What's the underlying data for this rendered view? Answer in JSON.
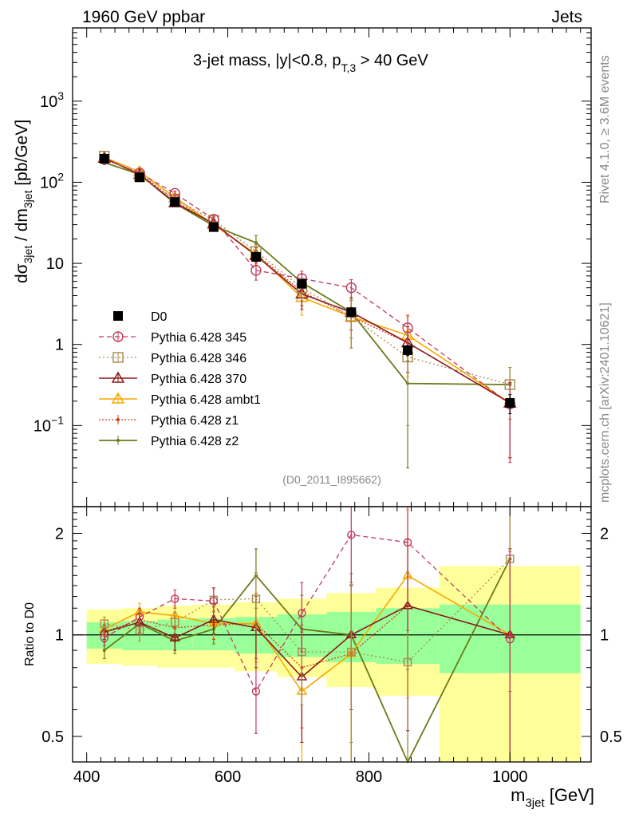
{
  "header": {
    "left": "1960 GeV ppbar",
    "right": "Jets"
  },
  "side": {
    "rivet": "Rivet 4.1.0, ≥ 3.6M events",
    "mcplots": "mcplots.cern.ch [arXiv:2401.10621]"
  },
  "analysis_id": "(D0_2011_I895662)",
  "colors": {
    "data": "#000000",
    "p345": "#c0395a",
    "p346": "#a88a4a",
    "p370": "#8b1a1a",
    "ambt1": "#f5a800",
    "z1": "#d63a1a",
    "z2": "#6b7a1a",
    "band_inner": "#99ff99",
    "band_outer": "#ffff99"
  },
  "chart_data": [
    {
      "type": "line",
      "title": "3-jet mass, |y|<0.8, p_T,3 > 40 GeV",
      "title_parts": {
        "main": "3-jet mass, |y|<0.8, p",
        "sub": "T,3",
        "tail": " > 40 GeV"
      },
      "xlabel": "m_3jet [GeV]",
      "xlabel_parts": {
        "main": "m",
        "sub": "3jet",
        "tail": " [GeV]"
      },
      "ylabel": "dσ_3jet / dm_3jet [pb/GeV]",
      "ylabel_parts": {
        "a": "dσ",
        "a_sub": "3jet",
        "b": " / dm",
        "b_sub": "3jet",
        "c": " [pb/GeV]"
      },
      "xlim": [
        380,
        1115
      ],
      "ylim": [
        0.01,
        8000
      ],
      "yscale": "log",
      "y_ticks": [
        {
          "base": "10",
          "exp": "−1",
          "text": ""
        },
        {
          "base": "",
          "exp": "",
          "text": "1"
        },
        {
          "base": "",
          "exp": "",
          "text": "10"
        },
        {
          "base": "10",
          "exp": "2",
          "text": ""
        },
        {
          "base": "10",
          "exp": "3",
          "text": ""
        }
      ],
      "y_tick_values": [
        0.1,
        1,
        10,
        100,
        1000
      ],
      "x": [
        425,
        475,
        525,
        580,
        640,
        705,
        775,
        855,
        1000
      ],
      "bin_edges": [
        400,
        450,
        500,
        550,
        610,
        670,
        740,
        810,
        900,
        1100
      ],
      "legend_location": "middle-left",
      "series": [
        {
          "name": "D0",
          "label": "D0",
          "key": "data",
          "values": [
            195,
            115,
            57,
            28,
            12,
            5.6,
            2.5,
            0.85,
            0.19
          ],
          "errors": [
            10,
            6,
            3,
            1.5,
            1.0,
            0.5,
            0.3,
            0.12,
            0.05
          ]
        },
        {
          "name": "Pythia 6.428 345",
          "label": "Pythia 6.428 345",
          "key": "p345",
          "values": [
            192,
            130,
            73,
            35,
            8.2,
            6.5,
            5.0,
            1.6,
            0.185
          ],
          "errors": [
            10,
            8,
            5,
            3,
            2,
            1.5,
            1.3,
            0.7,
            0.15
          ]
        },
        {
          "name": "Pythia 6.428 346",
          "label": "Pythia 6.428 346",
          "key": "p346",
          "values": [
            210,
            118,
            62,
            34,
            14,
            5.0,
            2.2,
            0.7,
            0.32
          ],
          "errors": [
            10,
            8,
            5,
            3,
            3,
            1.5,
            1.3,
            0.6,
            0.2
          ]
        },
        {
          "name": "Pythia 6.428 370",
          "label": "Pythia 6.428 370",
          "key": "p370",
          "values": [
            198,
            125,
            56,
            31,
            12.5,
            4.2,
            2.5,
            1.05,
            0.19
          ],
          "errors": [
            10,
            8,
            5,
            3,
            3,
            1.5,
            1.0,
            0.6,
            0.15
          ]
        },
        {
          "name": "Pythia 6.428 ambt1",
          "label": "Pythia 6.428 ambt1",
          "key": "ambt1",
          "values": [
            202,
            135,
            65,
            30,
            13,
            3.8,
            2.2,
            1.3,
            0.19
          ],
          "errors": [
            10,
            8,
            5,
            3,
            3,
            1.5,
            1.3,
            0.9,
            0.15
          ]
        },
        {
          "name": "Pythia 6.428 z1",
          "label": "Pythia 6.428 z1",
          "key": "z1",
          "values": [
            200,
            128,
            60,
            30,
            13,
            4.5,
            2.2,
            1.05,
            0.19
          ],
          "errors": [
            10,
            8,
            5,
            3,
            3,
            1.5,
            1.3,
            0.6,
            0.15
          ]
        },
        {
          "name": "Pythia 6.428 z2",
          "label": "Pythia 6.428 z2",
          "key": "z2",
          "values": [
            175,
            125,
            55,
            29,
            18,
            5.8,
            2.5,
            0.33,
            0.32
          ],
          "errors": [
            10,
            8,
            5,
            3,
            4,
            1.5,
            1.3,
            0.3,
            0.2
          ]
        }
      ]
    },
    {
      "type": "line",
      "title": "",
      "ylabel": "Ratio to D0",
      "xlabel": "m_3jet [GeV]",
      "xlim": [
        380,
        1115
      ],
      "ylim": [
        0.42,
        2.4
      ],
      "yscale": "log",
      "y_tick_values": [
        0.5,
        1,
        2
      ],
      "y_tick_labels": [
        "0.5",
        "1",
        "2"
      ],
      "x_tick_values": [
        400,
        600,
        800,
        1000
      ],
      "x_tick_labels": [
        "400",
        "600",
        "800",
        "1000"
      ],
      "band": {
        "bin_edges": [
          400,
          450,
          500,
          550,
          610,
          670,
          740,
          810,
          900,
          1100
        ],
        "inner_lo": [
          0.91,
          0.9,
          0.9,
          0.9,
          0.88,
          0.86,
          0.83,
          0.82,
          0.77
        ],
        "inner_hi": [
          1.09,
          1.1,
          1.11,
          1.12,
          1.13,
          1.15,
          1.17,
          1.2,
          1.23
        ],
        "outer_lo": [
          0.82,
          0.81,
          0.8,
          0.8,
          0.78,
          0.75,
          0.7,
          0.66,
          0.41
        ],
        "outer_hi": [
          1.19,
          1.2,
          1.22,
          1.23,
          1.25,
          1.28,
          1.33,
          1.38,
          1.6
        ]
      },
      "series": [
        {
          "name": "Pythia 6.428 345",
          "key": "p345",
          "values": [
            0.98,
            1.13,
            1.28,
            1.26,
            0.68,
            1.16,
            1.98,
            1.88,
            0.97
          ],
          "errors": [
            0.05,
            0.07,
            0.08,
            0.12,
            0.17,
            0.27,
            0.55,
            0.85,
            0.8
          ]
        },
        {
          "name": "Pythia 6.428 346",
          "key": "p346",
          "values": [
            1.08,
            1.03,
            1.09,
            1.27,
            1.28,
            0.89,
            0.89,
            0.83,
            1.68
          ],
          "errors": [
            0.05,
            0.07,
            0.08,
            0.1,
            0.25,
            0.27,
            0.52,
            0.7,
            1.0
          ]
        },
        {
          "name": "Pythia 6.428 370",
          "key": "p370",
          "values": [
            1.02,
            1.09,
            0.98,
            1.11,
            1.05,
            0.75,
            1.0,
            1.22,
            1.0
          ],
          "errors": [
            0.05,
            0.07,
            0.08,
            0.1,
            0.25,
            0.27,
            0.4,
            0.7,
            0.8
          ]
        },
        {
          "name": "Pythia 6.428 ambt1",
          "key": "ambt1",
          "values": [
            1.04,
            1.17,
            1.14,
            1.08,
            1.08,
            0.68,
            0.88,
            1.5,
            1.0
          ],
          "errors": [
            0.05,
            0.07,
            0.08,
            0.1,
            0.25,
            0.3,
            0.52,
            0.85,
            0.8
          ]
        },
        {
          "name": "Pythia 6.428 z1",
          "key": "z1",
          "values": [
            1.02,
            1.11,
            1.05,
            1.07,
            1.08,
            0.8,
            0.88,
            1.22,
            1.0
          ],
          "errors": [
            0.05,
            0.07,
            0.08,
            0.1,
            0.25,
            0.27,
            0.52,
            0.7,
            0.8
          ]
        },
        {
          "name": "Pythia 6.428 z2",
          "key": "z2",
          "values": [
            0.9,
            1.08,
            0.96,
            1.04,
            1.5,
            1.04,
            1.0,
            0.39,
            1.68
          ],
          "errors": [
            0.05,
            0.07,
            0.08,
            0.1,
            0.3,
            0.27,
            0.52,
            0.4,
            1.0
          ]
        }
      ]
    }
  ]
}
